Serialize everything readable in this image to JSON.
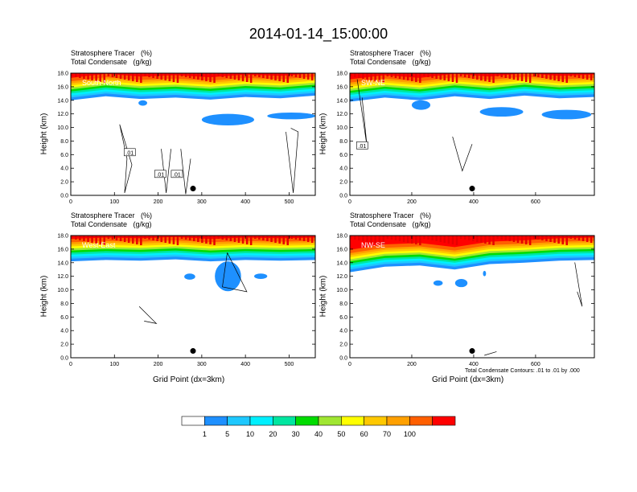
{
  "figure_title": "2014-01-14_15:00:00",
  "colors": {
    "levels": [
      "#ffffff",
      "#1e90ff",
      "#1ec8ff",
      "#00f0ff",
      "#00e6a0",
      "#00dc00",
      "#a0e632",
      "#ffff00",
      "#ffc800",
      "#ffa000",
      "#ff5f00",
      "#ff0000"
    ],
    "contour": "#000000"
  },
  "colorbar": {
    "labels": [
      "1",
      "5",
      "10",
      "20",
      "30",
      "40",
      "50",
      "60",
      "70",
      "100"
    ]
  },
  "footnote": "Total Condensate Contours: .01 to .01 by .000",
  "chart_data": [
    {
      "type": "heatmap",
      "title": "Stratosphere Tracer   (%)\nTotal Condensate   (g/kg)",
      "region_label": "South-North",
      "ylabel": "Height (km)",
      "xlabel": "",
      "xlim": [
        0,
        560
      ],
      "ylim": [
        0,
        18
      ],
      "xticks": [
        "0",
        "100",
        "200",
        "300",
        "400",
        "500"
      ],
      "xtick_values": [
        0,
        100,
        200,
        300,
        400,
        500
      ],
      "yticks": [
        "0.0",
        "2.0",
        "4.0",
        "6.0",
        "8.0",
        "10.0",
        "12.0",
        "14.0",
        "16.0",
        "18.0"
      ],
      "marker_x": 280,
      "marker_y": 1.0,
      "tracer_base_km": [
        15.2,
        15.8,
        15.4,
        15.6,
        15.3,
        15.7,
        15.5,
        15.9
      ],
      "blue_patches": [
        {
          "x0": 300,
          "x1": 420,
          "y0": 10.3,
          "y1": 12.0
        },
        {
          "x0": 450,
          "x1": 560,
          "y0": 11.2,
          "y1": 12.2
        },
        {
          "x0": 155,
          "x1": 175,
          "y0": 13.2,
          "y1": 14.0
        }
      ],
      "box_labels": [
        {
          "x": 135,
          "y": 6.3,
          "text": ".01"
        },
        {
          "x": 205,
          "y": 3.1,
          "text": ".01"
        },
        {
          "x": 243,
          "y": 3.1,
          "text": ".01"
        }
      ]
    },
    {
      "type": "heatmap",
      "title": "Stratosphere Tracer   (%)\nTotal Condensate   (g/kg)",
      "region_label": "SW-NE",
      "ylabel": "Height (km)",
      "xlabel": "",
      "xlim": [
        0,
        790
      ],
      "ylim": [
        0,
        18
      ],
      "xticks": [
        "0",
        "200",
        "400",
        "600"
      ],
      "xtick_values": [
        0,
        200,
        400,
        600
      ],
      "yticks": [
        "0.0",
        "2.0",
        "4.0",
        "6.0",
        "8.0",
        "10.0",
        "12.0",
        "14.0",
        "16.0",
        "18.0"
      ],
      "marker_x": 395,
      "marker_y": 1.0,
      "tracer_base_km": [
        15.0,
        15.6,
        15.2,
        15.8,
        15.4,
        15.9,
        15.5,
        15.7
      ],
      "blue_patches": [
        {
          "x0": 420,
          "x1": 560,
          "y0": 11.6,
          "y1": 13.0
        },
        {
          "x0": 620,
          "x1": 780,
          "y0": 11.2,
          "y1": 12.6
        },
        {
          "x0": 200,
          "x1": 260,
          "y0": 12.6,
          "y1": 14.0
        }
      ],
      "box_labels": [
        {
          "x": 40,
          "y": 7.3,
          "text": ".01"
        }
      ]
    },
    {
      "type": "heatmap",
      "title": "Stratosphere Tracer   (%)\nTotal Condensate   (g/kg)",
      "region_label": "West-East",
      "ylabel": "Height (km)",
      "xlabel": "Grid Point (dx=3km)",
      "xlim": [
        0,
        560
      ],
      "ylim": [
        0,
        18
      ],
      "xticks": [
        "0",
        "100",
        "200",
        "300",
        "400",
        "500"
      ],
      "xtick_values": [
        0,
        100,
        200,
        300,
        400,
        500
      ],
      "yticks": [
        "0.0",
        "2.0",
        "4.0",
        "6.0",
        "8.0",
        "10.0",
        "12.0",
        "14.0",
        "16.0",
        "18.0"
      ],
      "marker_x": 280,
      "marker_y": 1.0,
      "tracer_base_km": [
        15.4,
        15.6,
        15.5,
        15.7,
        15.4,
        15.6,
        15.5,
        15.6
      ],
      "blue_patches": [
        {
          "x0": 330,
          "x1": 390,
          "y0": 9.8,
          "y1": 14.2
        },
        {
          "x0": 420,
          "x1": 450,
          "y0": 11.6,
          "y1": 12.4
        },
        {
          "x0": 260,
          "x1": 285,
          "y0": 11.5,
          "y1": 12.4
        }
      ],
      "box_labels": []
    },
    {
      "type": "heatmap",
      "title": "Stratosphere Tracer   (%)\nTotal Condensate   (g/kg)",
      "region_label": "NW-SE",
      "ylabel": "Height (km)",
      "xlabel": "Grid Point (dx=3km)",
      "xlim": [
        0,
        790
      ],
      "ylim": [
        0,
        18
      ],
      "xticks": [
        "0",
        "200",
        "400",
        "600"
      ],
      "xtick_values": [
        0,
        200,
        400,
        600
      ],
      "yticks": [
        "0.0",
        "2.0",
        "4.0",
        "6.0",
        "8.0",
        "10.0",
        "12.0",
        "14.0",
        "16.0",
        "18.0"
      ],
      "marker_x": 395,
      "marker_y": 1.0,
      "tracer_base_km": [
        13.8,
        14.6,
        14.8,
        14.2,
        15.0,
        15.2,
        15.5,
        15.6
      ],
      "blue_patches": [
        {
          "x0": 270,
          "x1": 300,
          "y0": 10.6,
          "y1": 11.4
        },
        {
          "x0": 340,
          "x1": 380,
          "y0": 10.4,
          "y1": 11.6
        },
        {
          "x0": 430,
          "x1": 440,
          "y0": 12.0,
          "y1": 12.8
        }
      ],
      "box_labels": []
    }
  ]
}
